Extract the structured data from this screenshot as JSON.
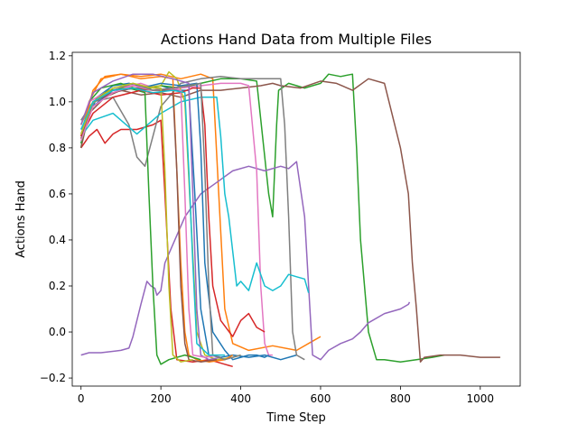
{
  "chart_data": {
    "type": "line",
    "title": "Actions Hand Data from Multiple Files",
    "xlabel": "Time Step",
    "ylabel": "Actions Hand",
    "xlim": [
      -22,
      1100
    ],
    "ylim": [
      -0.235,
      1.215
    ],
    "x_ticks": [
      "0",
      "200",
      "400",
      "600",
      "800",
      "1000"
    ],
    "y_ticks": [
      "−0.2",
      "0.0",
      "0.2",
      "0.4",
      "0.6",
      "0.8",
      "1.0",
      "1.2"
    ],
    "grid": false,
    "legend": "none",
    "palette": [
      "#1f77b4",
      "#ff7f0e",
      "#2ca02c",
      "#d62728",
      "#9467bd",
      "#8c564b",
      "#e377c2",
      "#7f7f7f",
      "#bcbd22",
      "#17becf"
    ],
    "series": [
      {
        "color": "#1f77b4",
        "x": [
          0,
          15,
          40,
          80,
          120,
          160,
          200,
          240,
          270,
          285,
          300,
          320,
          350,
          380,
          420,
          460,
          500,
          540
        ],
        "y": [
          0.82,
          0.92,
          1.02,
          1.07,
          1.08,
          1.06,
          1.07,
          1.05,
          1.05,
          0.6,
          0.1,
          -0.1,
          -0.11,
          -0.1,
          -0.11,
          -0.1,
          -0.12,
          -0.1
        ]
      },
      {
        "color": "#ff7f0e",
        "x": [
          0,
          20,
          50,
          100,
          150,
          200,
          250,
          300,
          330,
          345,
          360,
          380,
          420,
          480,
          540,
          580,
          600
        ],
        "y": [
          0.85,
          1.0,
          1.1,
          1.12,
          1.11,
          1.12,
          1.1,
          1.12,
          1.1,
          0.6,
          0.1,
          -0.05,
          -0.08,
          -0.06,
          -0.08,
          -0.04,
          -0.02
        ]
      },
      {
        "color": "#2ca02c",
        "x": [
          0,
          20,
          50,
          100,
          150,
          200,
          250,
          300,
          350,
          400,
          440,
          470,
          480,
          490,
          495,
          520,
          560,
          600,
          620,
          650,
          680,
          690,
          700,
          720,
          740,
          760,
          800,
          840,
          880,
          910
        ],
        "y": [
          0.8,
          1.0,
          1.06,
          1.08,
          1.05,
          1.07,
          1.06,
          1.08,
          1.1,
          1.1,
          1.09,
          0.6,
          0.5,
          0.9,
          1.05,
          1.08,
          1.06,
          1.08,
          1.12,
          1.11,
          1.12,
          0.8,
          0.4,
          0.0,
          -0.12,
          -0.12,
          -0.13,
          -0.12,
          -0.11,
          -0.1
        ]
      },
      {
        "color": "#d62728",
        "x": [
          0,
          20,
          40,
          60,
          80,
          100,
          140,
          180,
          200,
          210,
          225,
          240,
          280,
          320,
          360,
          380
        ],
        "y": [
          0.8,
          0.85,
          0.88,
          0.82,
          0.86,
          0.88,
          0.88,
          0.9,
          0.92,
          0.6,
          0.1,
          -0.12,
          -0.13,
          -0.12,
          -0.14,
          -0.15
        ]
      },
      {
        "color": "#9467bd",
        "x": [
          0,
          20,
          50,
          100,
          120,
          130,
          150,
          165,
          175,
          185,
          190,
          200,
          210,
          260,
          300,
          340,
          380,
          420,
          460,
          500,
          520,
          540,
          560,
          580,
          600,
          620,
          650,
          680,
          700,
          720,
          760,
          800,
          820,
          823
        ],
        "y": [
          -0.1,
          -0.09,
          -0.09,
          -0.08,
          -0.07,
          -0.02,
          0.12,
          0.22,
          0.2,
          0.19,
          0.16,
          0.18,
          0.3,
          0.5,
          0.6,
          0.65,
          0.7,
          0.72,
          0.7,
          0.72,
          0.71,
          0.74,
          0.5,
          -0.1,
          -0.12,
          -0.08,
          -0.05,
          -0.03,
          0.0,
          0.04,
          0.08,
          0.1,
          0.12,
          0.13
        ]
      },
      {
        "color": "#8c564b",
        "x": [
          0,
          20,
          60,
          100,
          150,
          200,
          250,
          300,
          350,
          400,
          450,
          480,
          500,
          550,
          600,
          640,
          680,
          720,
          760,
          800,
          820,
          830,
          840,
          850,
          860,
          900,
          950,
          1000,
          1050
        ],
        "y": [
          0.8,
          0.95,
          1.02,
          1.05,
          1.03,
          1.04,
          1.02,
          1.05,
          1.05,
          1.06,
          1.07,
          1.08,
          1.07,
          1.06,
          1.09,
          1.08,
          1.05,
          1.1,
          1.08,
          0.8,
          0.6,
          0.3,
          0.1,
          -0.13,
          -0.11,
          -0.1,
          -0.1,
          -0.11,
          -0.11
        ]
      },
      {
        "color": "#e377c2",
        "x": [
          0,
          20,
          60,
          100,
          150,
          200,
          250,
          300,
          350,
          400,
          420,
          440,
          450,
          460,
          470,
          480
        ],
        "y": [
          0.9,
          1.0,
          1.04,
          1.06,
          1.08,
          1.05,
          1.06,
          1.07,
          1.08,
          1.08,
          1.07,
          0.7,
          0.2,
          -0.05,
          -0.1,
          -0.1
        ]
      },
      {
        "color": "#7f7f7f",
        "x": [
          0,
          30,
          80,
          120,
          140,
          160,
          200,
          250,
          300,
          350,
          400,
          450,
          480,
          500,
          510,
          520,
          530,
          540,
          560
        ],
        "y": [
          0.92,
          1.0,
          1.02,
          0.9,
          0.76,
          0.72,
          0.98,
          1.08,
          1.1,
          1.11,
          1.1,
          1.1,
          1.1,
          1.1,
          0.9,
          0.5,
          0.0,
          -0.1,
          -0.12
        ]
      },
      {
        "color": "#bcbd22",
        "x": [
          0,
          20,
          60,
          100,
          150,
          200,
          220,
          240,
          260,
          275,
          290,
          310,
          340,
          380,
          400
        ],
        "y": [
          0.9,
          0.98,
          1.04,
          1.06,
          1.06,
          1.07,
          1.13,
          1.1,
          1.0,
          0.5,
          0.0,
          -0.1,
          -0.12,
          -0.11,
          -0.1
        ]
      },
      {
        "color": "#17becf",
        "x": [
          0,
          30,
          80,
          140,
          200,
          250,
          300,
          340,
          350,
          360,
          370,
          380,
          390,
          400,
          420,
          440,
          460,
          480,
          500,
          520,
          540,
          560,
          570
        ],
        "y": [
          0.85,
          0.92,
          0.95,
          0.86,
          0.95,
          1.0,
          1.02,
          1.02,
          0.85,
          0.6,
          0.5,
          0.35,
          0.2,
          0.22,
          0.18,
          0.3,
          0.2,
          0.18,
          0.2,
          0.25,
          0.24,
          0.23,
          0.17
        ]
      },
      {
        "color": "#1f77b4",
        "x": [
          0,
          30,
          80,
          150,
          200,
          250,
          290,
          300,
          310,
          330,
          360,
          380,
          400,
          420,
          440,
          460,
          470
        ],
        "y": [
          0.88,
          0.98,
          1.05,
          1.06,
          1.08,
          1.07,
          1.08,
          0.8,
          0.3,
          0.0,
          -0.08,
          -0.12,
          -0.11,
          -0.1,
          -0.1,
          -0.11,
          -0.1
        ]
      },
      {
        "color": "#ff7f0e",
        "x": [
          0,
          30,
          60,
          100,
          150,
          200,
          230,
          240,
          250,
          260,
          270,
          290,
          320,
          360,
          380
        ],
        "y": [
          0.85,
          1.05,
          1.11,
          1.12,
          1.1,
          1.11,
          1.1,
          0.7,
          0.3,
          0.0,
          -0.1,
          -0.12,
          -0.13,
          -0.12,
          -0.1
        ]
      },
      {
        "color": "#2ca02c",
        "x": [
          0,
          30,
          70,
          120,
          160,
          170,
          180,
          190,
          200,
          220,
          260,
          300
        ],
        "y": [
          0.82,
          1.0,
          1.05,
          1.06,
          1.04,
          0.6,
          0.2,
          -0.1,
          -0.14,
          -0.12,
          -0.1,
          -0.12
        ]
      },
      {
        "color": "#d62728",
        "x": [
          0,
          30,
          80,
          150,
          200,
          250,
          280,
          300,
          310,
          320,
          330,
          350,
          380,
          400,
          420,
          440,
          460
        ],
        "y": [
          0.85,
          0.95,
          1.02,
          1.05,
          1.03,
          1.04,
          1.06,
          1.06,
          0.9,
          0.5,
          0.2,
          0.05,
          -0.02,
          0.05,
          0.08,
          0.02,
          0.0
        ]
      },
      {
        "color": "#9467bd",
        "x": [
          0,
          30,
          80,
          130,
          180,
          230,
          270,
          280,
          290,
          300,
          320,
          350
        ],
        "y": [
          0.9,
          1.04,
          1.09,
          1.12,
          1.12,
          1.1,
          1.08,
          0.6,
          0.1,
          -0.1,
          -0.12,
          -0.11
        ]
      },
      {
        "color": "#8c564b",
        "x": [
          0,
          30,
          80,
          130,
          180,
          230,
          240,
          250,
          260,
          270,
          300,
          340
        ],
        "y": [
          0.84,
          1.0,
          1.04,
          1.06,
          1.05,
          1.05,
          0.7,
          0.2,
          -0.05,
          -0.12,
          -0.13,
          -0.12
        ]
      },
      {
        "color": "#e377c2",
        "x": [
          0,
          30,
          80,
          130,
          180,
          230,
          250,
          260,
          270,
          280,
          310,
          350
        ],
        "y": [
          0.83,
          0.98,
          1.04,
          1.07,
          1.05,
          1.06,
          1.05,
          0.6,
          0.1,
          -0.1,
          -0.11,
          -0.1
        ]
      },
      {
        "color": "#7f7f7f",
        "x": [
          0,
          30,
          80,
          130,
          180,
          230,
          300,
          310,
          320,
          330,
          360,
          400
        ],
        "y": [
          0.86,
          1.0,
          1.05,
          1.08,
          1.05,
          1.06,
          1.08,
          0.7,
          0.2,
          -0.1,
          -0.12,
          -0.1
        ]
      },
      {
        "color": "#bcbd22",
        "x": [
          0,
          30,
          80,
          130,
          180,
          200,
          210,
          220,
          230,
          250,
          280
        ],
        "y": [
          0.86,
          1.0,
          1.06,
          1.08,
          1.06,
          1.06,
          0.7,
          0.2,
          -0.1,
          -0.13,
          -0.12
        ]
      },
      {
        "color": "#17becf",
        "x": [
          0,
          30,
          80,
          130,
          180,
          230,
          260,
          270,
          280,
          290,
          320,
          360
        ],
        "y": [
          0.88,
          1.0,
          1.05,
          1.06,
          1.04,
          1.05,
          1.04,
          0.7,
          0.3,
          -0.05,
          -0.1,
          -0.1
        ]
      }
    ]
  }
}
